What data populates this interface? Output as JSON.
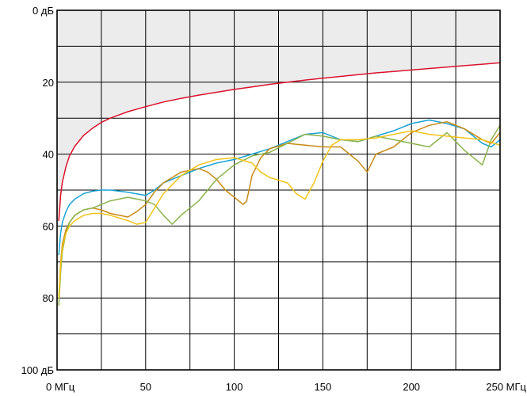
{
  "chart_data": {
    "type": "line",
    "title": "",
    "xlabel": "",
    "ylabel": "",
    "xlim": [
      0,
      250
    ],
    "ylim": [
      0,
      100
    ],
    "y_inverted": true,
    "grid": true,
    "x_ticks": [
      {
        "value": 0,
        "label": "0 МГц"
      },
      {
        "value": 50,
        "label": "50"
      },
      {
        "value": 100,
        "label": "100"
      },
      {
        "value": 150,
        "label": "150"
      },
      {
        "value": 200,
        "label": "200"
      },
      {
        "value": 250,
        "label": "250 МГц"
      }
    ],
    "y_ticks": [
      {
        "value": 0,
        "label": "0 дБ"
      },
      {
        "value": 20,
        "label": "20"
      },
      {
        "value": 40,
        "label": "40"
      },
      {
        "value": 60,
        "label": "60"
      },
      {
        "value": 80,
        "label": "80"
      },
      {
        "value": 100,
        "label": "100 дБ"
      }
    ],
    "limit_region_fill": "#ececec",
    "series": [
      {
        "color": "#d9132d",
        "x": [
          1,
          2,
          3,
          5,
          7,
          10,
          15,
          20,
          25,
          30,
          40,
          50,
          60,
          70,
          80,
          90,
          100,
          110,
          120,
          130,
          140,
          150,
          160,
          170,
          180,
          190,
          200,
          210,
          220,
          230,
          240,
          250
        ],
        "values": [
          58.5,
          51.5,
          47.8,
          43.5,
          40.5,
          37.8,
          34.8,
          32.8,
          31.2,
          30.0,
          28.2,
          26.8,
          25.5,
          24.5,
          23.6,
          22.8,
          22.0,
          21.3,
          20.6,
          20.0,
          19.4,
          18.9,
          18.4,
          17.9,
          17.4,
          17.0,
          16.6,
          16.2,
          15.8,
          15.4,
          15.0,
          14.6
        ]
      },
      {
        "color": "#1aa3d4",
        "x": [
          1,
          2,
          3,
          5,
          7,
          10,
          15,
          20,
          25,
          30,
          40,
          50,
          55,
          60,
          70,
          80,
          90,
          100,
          110,
          120,
          130,
          140,
          150,
          160,
          170,
          180,
          190,
          200,
          210,
          220,
          230,
          240,
          245,
          250
        ],
        "values": [
          68,
          62,
          59,
          56,
          54,
          52.5,
          51,
          50.3,
          50,
          50,
          50.6,
          51.5,
          50,
          48,
          46,
          44,
          42.5,
          41.5,
          40,
          38.5,
          36.5,
          34.5,
          34,
          36,
          36.5,
          35,
          33.5,
          31.5,
          30.5,
          31.5,
          33,
          37,
          38,
          36
        ]
      },
      {
        "color": "#c78a14",
        "x": [
          1,
          2,
          3,
          5,
          7,
          10,
          15,
          20,
          25,
          30,
          40,
          45,
          50,
          55,
          60,
          70,
          80,
          85,
          90,
          95,
          100,
          105,
          107,
          110,
          115,
          120,
          130,
          140,
          150,
          160,
          170,
          175,
          180,
          190,
          200,
          210,
          220,
          230,
          240,
          245,
          250
        ],
        "values": [
          80,
          70,
          65,
          61,
          59,
          57,
          55.5,
          55,
          55.5,
          56.5,
          57.5,
          56,
          54,
          50.5,
          48,
          45,
          44,
          45,
          47,
          50,
          52,
          54,
          53,
          46,
          41,
          38.5,
          37,
          37.5,
          38,
          38,
          42,
          45,
          40,
          38,
          34,
          32,
          31,
          33,
          36,
          37,
          34
        ]
      },
      {
        "color": "#8bb34a",
        "x": [
          1,
          2,
          3,
          5,
          7,
          10,
          15,
          20,
          25,
          30,
          40,
          50,
          55,
          60,
          65,
          70,
          80,
          90,
          100,
          110,
          120,
          130,
          140,
          150,
          160,
          170,
          180,
          190,
          200,
          210,
          220,
          230,
          240,
          245,
          250
        ],
        "values": [
          82,
          73,
          67,
          62,
          59,
          57,
          55.5,
          55,
          54,
          53,
          52,
          53,
          54,
          57,
          59.5,
          57,
          53,
          47,
          43,
          40.5,
          39.5,
          37,
          34.5,
          35,
          36,
          36.5,
          35,
          36,
          37,
          38,
          34,
          39,
          43,
          36,
          32
        ]
      },
      {
        "color": "#f2c318",
        "x": [
          1,
          2,
          3,
          5,
          7,
          10,
          15,
          20,
          25,
          30,
          40,
          45,
          50,
          55,
          60,
          70,
          80,
          90,
          100,
          110,
          115,
          120,
          130,
          135,
          140,
          145,
          150,
          155,
          160,
          170,
          180,
          190,
          200,
          210,
          220,
          230,
          240,
          250
        ],
        "values": [
          80,
          71,
          66,
          62,
          60,
          58.5,
          57,
          56.5,
          56.5,
          57,
          58.5,
          59.5,
          59,
          55,
          51,
          46,
          43,
          41.5,
          41,
          42.5,
          45,
          46.5,
          48,
          51,
          52.5,
          48,
          42,
          37.5,
          36,
          36,
          35.5,
          34.5,
          33.5,
          34.5,
          35,
          35.5,
          36,
          37.5
        ]
      }
    ]
  }
}
